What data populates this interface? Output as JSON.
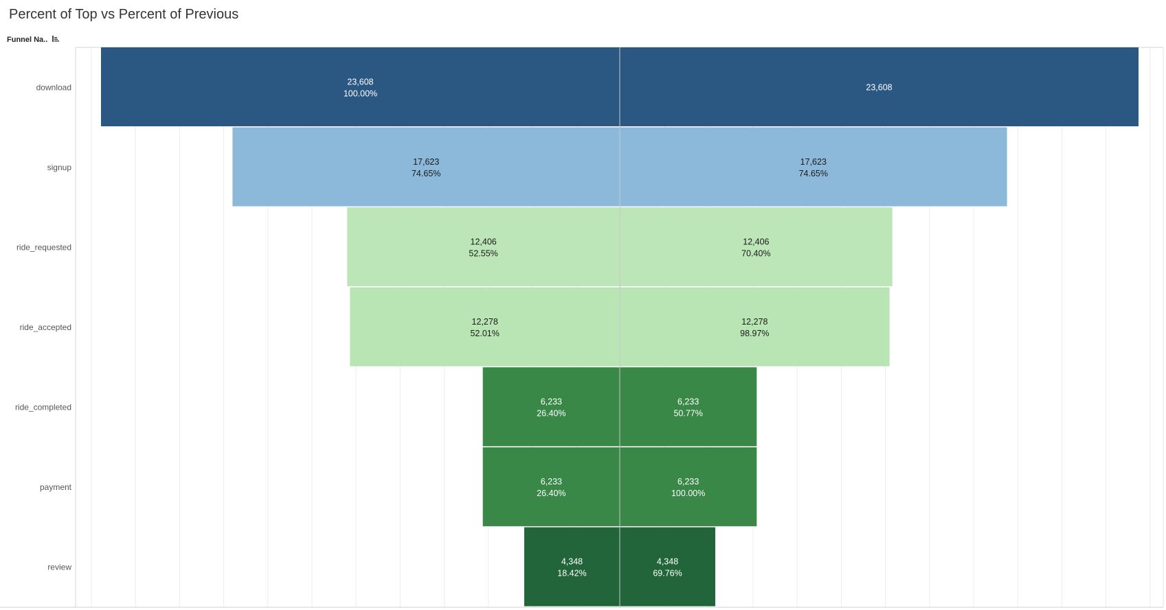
{
  "title": "Percent of Top vs Percent of Previous",
  "row_header": "Funnel Na..",
  "icons": {
    "sort": "sort-descending-icon"
  },
  "colors": {
    "download": "#2b5783",
    "signup": "#8cb9da",
    "ride_requested": "#bde6b8",
    "ride_accepted": "#b9e5b4",
    "ride_completed": "#398848",
    "payment": "#398848",
    "review": "#23653a",
    "divider": "#c8c8c8",
    "grid": "#ececec",
    "label_dark": "#1a1a1a",
    "label_light": "#ffffff"
  },
  "chart_data": {
    "type": "bar",
    "orientation": "horizontal-funnel",
    "categories": [
      "download",
      "signup",
      "ride_requested",
      "ride_accepted",
      "ride_completed",
      "payment",
      "review"
    ],
    "series": [
      {
        "values": [
          23608,
          17623,
          12406,
          12278,
          6233,
          6233,
          4348
        ],
        "value_labels": [
          "23,608",
          "17,623",
          "12,406",
          "12,278",
          "6,233",
          "6,233",
          "4,348"
        ],
        "pct_labels": [
          "100.00%",
          "74.65%",
          "52.55%",
          "52.01%",
          "26.40%",
          "26.40%",
          "18.42%"
        ]
      },
      {
        "values": [
          23608,
          17623,
          12406,
          12278,
          6233,
          6233,
          4348
        ],
        "value_labels": [
          "23,608",
          "17,623",
          "12,406",
          "12,278",
          "6,233",
          "6,233",
          "4,348"
        ],
        "pct_labels": [
          "",
          "74.65%",
          "70.40%",
          "98.97%",
          "50.77%",
          "100.00%",
          "69.76%"
        ]
      }
    ],
    "grid": true
  }
}
